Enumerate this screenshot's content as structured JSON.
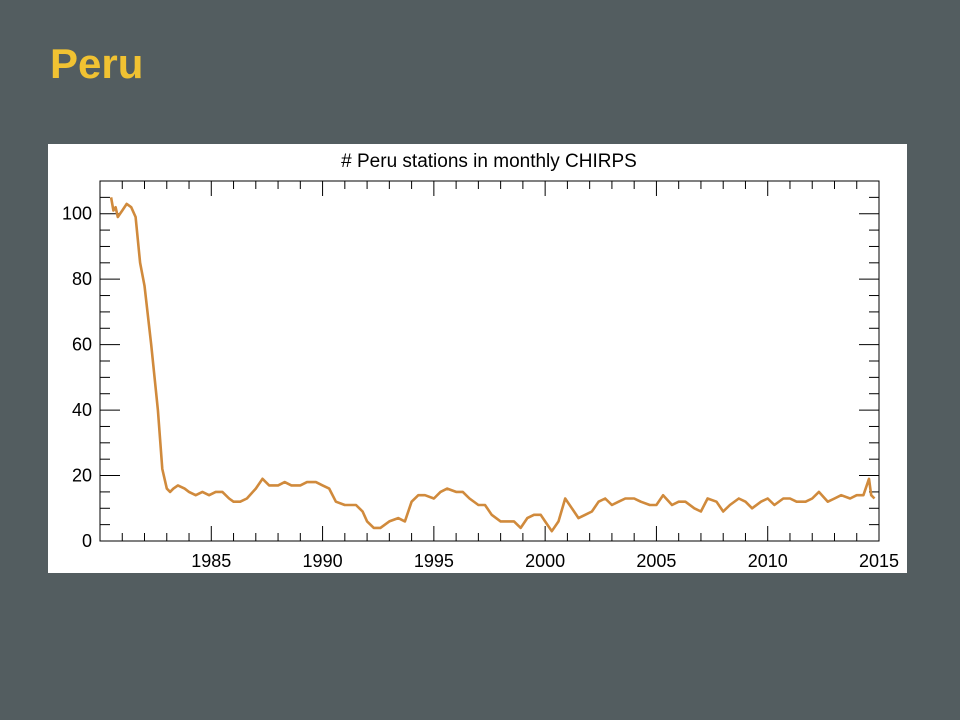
{
  "slide": {
    "title": "Peru",
    "title_color": "#f1c232",
    "background": "#535d60"
  },
  "chart_data": {
    "type": "line",
    "title": "# Peru stations in monthly CHIRPS",
    "xlabel": "",
    "ylabel": "",
    "xlim": [
      1980,
      2015
    ],
    "ylim": [
      0,
      110
    ],
    "xticks": [
      1985,
      1990,
      1995,
      2000,
      2005,
      2010,
      2015
    ],
    "yticks": [
      0,
      20,
      40,
      60,
      80,
      100
    ],
    "grid": false,
    "line_color": "#d08a3c",
    "series": [
      {
        "x": [
          1980.5,
          1980.6,
          1980.7,
          1980.8,
          1981.0,
          1981.2,
          1981.4,
          1981.6,
          1981.8,
          1982.0,
          1982.3,
          1982.6,
          1982.8,
          1983.0,
          1983.15,
          1983.3,
          1983.5,
          1983.8,
          1984.0,
          1984.3,
          1984.6,
          1984.9,
          1985.2,
          1985.5,
          1985.8,
          1986.0,
          1986.3,
          1986.6,
          1987.0,
          1987.3,
          1987.6,
          1988.0,
          1988.3,
          1988.6,
          1989.0,
          1989.3,
          1989.7,
          1990.0,
          1990.3,
          1990.6,
          1991.0,
          1991.5,
          1991.8,
          1992.0,
          1992.3,
          1992.6,
          1993.0,
          1993.4,
          1993.7,
          1994.0,
          1994.3,
          1994.6,
          1995.0,
          1995.3,
          1995.6,
          1996.0,
          1996.3,
          1996.6,
          1997.0,
          1997.3,
          1997.6,
          1998.0,
          1998.3,
          1998.6,
          1998.9,
          1999.2,
          1999.5,
          1999.8,
          2000.0,
          2000.3,
          2000.6,
          2000.9,
          2001.2,
          2001.5,
          2001.8,
          2002.1,
          2002.4,
          2002.7,
          2003.0,
          2003.3,
          2003.6,
          2004.0,
          2004.3,
          2004.7,
          2005.0,
          2005.3,
          2005.7,
          2006.0,
          2006.3,
          2006.7,
          2007.0,
          2007.3,
          2007.7,
          2008.0,
          2008.3,
          2008.7,
          2009.0,
          2009.3,
          2009.7,
          2010.0,
          2010.3,
          2010.7,
          2011.0,
          2011.3,
          2011.7,
          2012.0,
          2012.3,
          2012.7,
          2013.0,
          2013.3,
          2013.7,
          2014.0,
          2014.3,
          2014.55,
          2014.65,
          2014.8
        ],
        "y": [
          105,
          101,
          102,
          99,
          101,
          103,
          102,
          99,
          85,
          78,
          60,
          40,
          22,
          16,
          15,
          16,
          17,
          16,
          15,
          14,
          15,
          14,
          15,
          15,
          13,
          12,
          12,
          13,
          16,
          19,
          17,
          17,
          18,
          17,
          17,
          18,
          18,
          17,
          16,
          12,
          11,
          11,
          9,
          6,
          4,
          4,
          6,
          7,
          6,
          12,
          14,
          14,
          13,
          15,
          16,
          15,
          15,
          13,
          11,
          11,
          8,
          6,
          6,
          6,
          4,
          7,
          8,
          8,
          6,
          3,
          6,
          13,
          10,
          7,
          8,
          9,
          12,
          13,
          11,
          12,
          13,
          13,
          12,
          11,
          11,
          14,
          11,
          12,
          12,
          10,
          9,
          13,
          12,
          9,
          11,
          13,
          12,
          10,
          12,
          13,
          11,
          13,
          13,
          12,
          12,
          13,
          15,
          12,
          13,
          14,
          13,
          14,
          14,
          19,
          14,
          13
        ]
      }
    ]
  }
}
